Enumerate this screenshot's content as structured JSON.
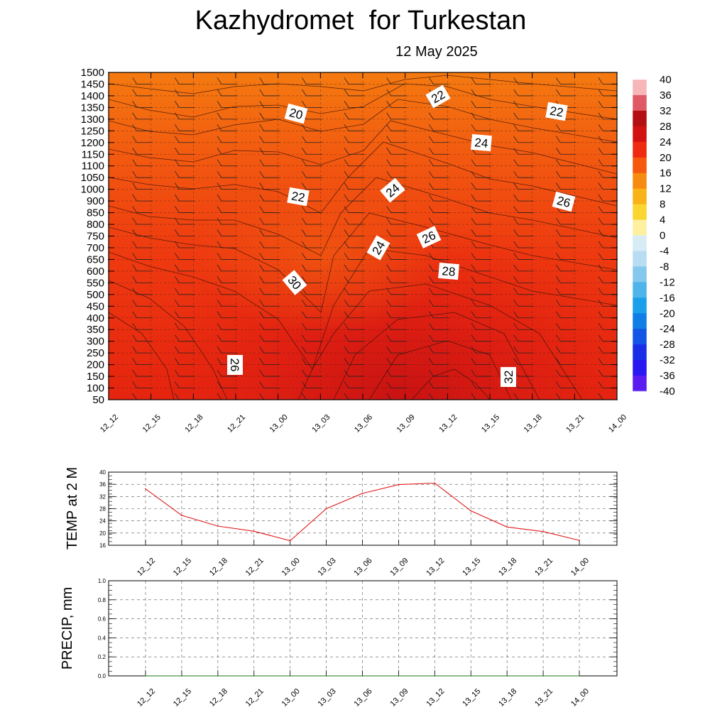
{
  "header": {
    "title": "Kazhydromet  for Turkestan",
    "subtitle": "12 May 2025"
  },
  "chart_data": [
    {
      "type": "heatmap",
      "title": "",
      "y_levels": [
        1500,
        1450,
        1400,
        1350,
        1300,
        1250,
        1200,
        1150,
        1100,
        1050,
        1000,
        900,
        850,
        800,
        750,
        700,
        650,
        600,
        550,
        500,
        450,
        400,
        350,
        300,
        250,
        200,
        150,
        100,
        50
      ],
      "x_labels": [
        "12_12",
        "12_15",
        "12_18",
        "12_21",
        "13_00",
        "13_03",
        "13_06",
        "13_09",
        "13_12",
        "13_15",
        "13_18",
        "13_21",
        "14_00"
      ],
      "colorbar": {
        "labels": [
          "40",
          "36",
          "32",
          "28",
          "24",
          "20",
          "16",
          "12",
          "8",
          "4",
          "0",
          "-4",
          "-8",
          "-12",
          "-16",
          "-20",
          "-24",
          "-28",
          "-32",
          "-36",
          "-40"
        ]
      },
      "contour_labels": [
        "20",
        "22",
        "22",
        "24",
        "22",
        "24",
        "26",
        "24",
        "26",
        "28",
        "30",
        "26",
        "32"
      ]
    },
    {
      "type": "line",
      "ylabel": "TEMP at 2 M",
      "ylim": [
        16,
        40
      ],
      "y_ticks": [
        "40",
        "36",
        "32",
        "28",
        "24",
        "20",
        "16"
      ],
      "x_labels": [
        "12_12",
        "12_15",
        "12_18",
        "12_21",
        "13_00",
        "13_03",
        "13_06",
        "13_09",
        "13_12",
        "13_15",
        "13_18",
        "13_21",
        "14_00"
      ],
      "series": [
        {
          "values": [
            34.5,
            25.8,
            22.3,
            20.6,
            17.5,
            28,
            33,
            35.9,
            36.4,
            27.3,
            22,
            20.5,
            17.6
          ],
          "color": "#e21a1a"
        }
      ]
    },
    {
      "type": "line",
      "ylabel": "PRECIP, mm",
      "ylim": [
        0,
        1
      ],
      "y_ticks": [
        "1.0",
        "0.8",
        "0.6",
        "0.4",
        "0.2",
        "0.0"
      ],
      "x_labels": [
        "12_12",
        "12_15",
        "12_18",
        "12_21",
        "13_00",
        "13_03",
        "13_06",
        "13_09",
        "13_12",
        "13_15",
        "13_18",
        "13_21",
        "14_00"
      ],
      "series": [
        {
          "values": [
            0,
            0,
            0,
            0,
            0,
            0,
            0,
            0,
            0,
            0,
            0,
            0,
            0
          ],
          "color": "#1a7a1a"
        }
      ]
    }
  ]
}
